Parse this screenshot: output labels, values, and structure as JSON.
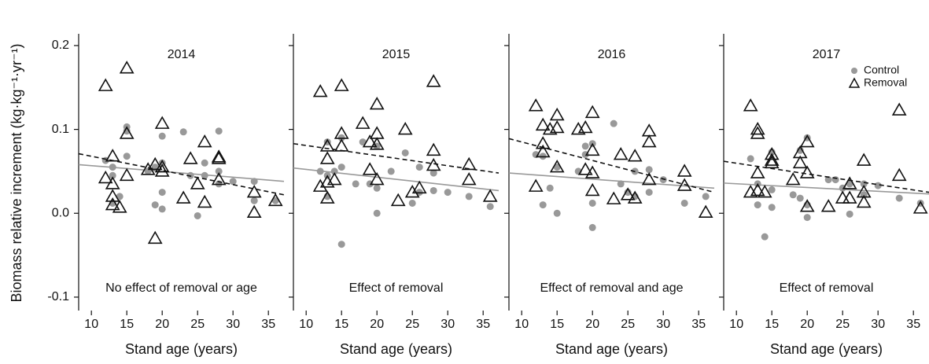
{
  "chart_data": [
    {
      "type": "scatter",
      "title": "2014",
      "annotation": "No effect of removal or age",
      "x_label": "Stand age (years)",
      "y_label": "Biomass relative increment (kg·kg⁻¹·yr⁻¹)",
      "xlim": [
        8.2,
        37.2
      ],
      "xticks": [
        10,
        15,
        20,
        25,
        30,
        35
      ],
      "ylim": [
        -0.116,
        0.214
      ],
      "yticks": [
        0.2,
        0.1,
        {
          "value": 0,
          "label": "0.0"
        },
        -0.1
      ],
      "series": [
        {
          "color": "#999999",
          "marker": "circle",
          "trend_style": "solid",
          "trend": [
            0.058,
            0.038
          ],
          "x": [
            12,
            13,
            13,
            13,
            14,
            15,
            15,
            15,
            18,
            19,
            19,
            20,
            20,
            20,
            20,
            23,
            24,
            25,
            26,
            26,
            28,
            28,
            28,
            30,
            33,
            33,
            36
          ],
          "values": [
            0.063,
            0.055,
            0.045,
            0.012,
            0.02,
            0.103,
            0.068,
            0.098,
            0.05,
            0.01,
            0.055,
            0.092,
            0.025,
            0.005,
            0.06,
            0.097,
            0.045,
            -0.003,
            0.06,
            0.045,
            0.098,
            0.05,
            0.035,
            0.038,
            0.038,
            0.015,
            0.015
          ]
        },
        {
          "color": "#111111",
          "marker": "triangle",
          "trend_style": "dashed",
          "trend": [
            0.071,
            0.022
          ],
          "x": [
            12,
            12,
            13,
            13,
            13,
            13,
            14,
            15,
            15,
            15,
            18,
            19,
            19,
            20,
            20,
            20,
            23,
            24,
            25,
            26,
            26,
            28,
            28,
            28,
            33,
            33,
            36
          ],
          "values": [
            0.152,
            0.042,
            0.068,
            0.035,
            0.02,
            0.01,
            0.007,
            0.173,
            0.095,
            0.045,
            0.052,
            0.058,
            -0.03,
            0.107,
            0.055,
            0.05,
            0.018,
            0.065,
            0.035,
            0.085,
            0.013,
            0.067,
            0.065,
            0.04,
            0.025,
            0.001,
            0.015
          ]
        }
      ]
    },
    {
      "type": "scatter",
      "title": "2015",
      "annotation": "Effect of removal",
      "x_label": "Stand age (years)",
      "xlim": [
        8.2,
        37.2
      ],
      "xticks": [
        10,
        15,
        20,
        25,
        30,
        35
      ],
      "ylim": [
        -0.116,
        0.214
      ],
      "series": [
        {
          "color": "#999999",
          "marker": "circle",
          "trend_style": "solid",
          "trend": [
            0.054,
            0.027
          ],
          "x": [
            12,
            13,
            13,
            13,
            14,
            15,
            15,
            15,
            17,
            18,
            19,
            20,
            20,
            20,
            22,
            24,
            25,
            26,
            26,
            28,
            28,
            30,
            33,
            36
          ],
          "values": [
            0.05,
            0.085,
            0.045,
            0.02,
            0.05,
            0.09,
            0.055,
            -0.037,
            0.035,
            0.085,
            0.035,
            0.03,
            0.0,
            0.08,
            0.05,
            0.072,
            0.012,
            0.055,
            0.025,
            0.048,
            0.027,
            0.025,
            0.02,
            0.008
          ]
        },
        {
          "color": "#111111",
          "marker": "triangle",
          "trend_style": "dashed",
          "trend": [
            0.083,
            0.048
          ],
          "x": [
            12,
            12,
            13,
            13,
            13,
            13,
            14,
            15,
            15,
            15,
            18,
            19,
            19,
            20,
            20,
            20,
            20,
            23,
            24,
            25,
            26,
            28,
            28,
            28,
            33,
            33,
            36
          ],
          "values": [
            0.145,
            0.032,
            0.08,
            0.065,
            0.037,
            0.018,
            0.04,
            0.152,
            0.095,
            0.08,
            0.107,
            0.085,
            0.052,
            0.13,
            0.095,
            0.082,
            0.04,
            0.015,
            0.1,
            0.025,
            0.03,
            0.157,
            0.075,
            0.057,
            0.058,
            0.04,
            0.02
          ]
        }
      ]
    },
    {
      "type": "scatter",
      "title": "2016",
      "annotation": "Effect of removal and age",
      "x_label": "Stand age (years)",
      "xlim": [
        8.2,
        37.2
      ],
      "xticks": [
        10,
        15,
        20,
        25,
        30,
        35
      ],
      "ylim": [
        -0.116,
        0.214
      ],
      "series": [
        {
          "color": "#999999",
          "marker": "circle",
          "trend_style": "solid",
          "trend": [
            0.048,
            0.03
          ],
          "x": [
            12,
            13,
            13,
            14,
            15,
            15,
            18,
            19,
            19,
            20,
            20,
            20,
            23,
            24,
            25,
            26,
            26,
            28,
            28,
            30,
            33,
            36
          ],
          "values": [
            0.07,
            0.01,
            0.068,
            0.03,
            0.0,
            0.055,
            0.05,
            0.08,
            0.07,
            0.083,
            0.012,
            -0.017,
            0.107,
            0.035,
            0.025,
            0.05,
            0.02,
            0.052,
            0.025,
            0.04,
            0.012,
            0.02
          ]
        },
        {
          "color": "#111111",
          "marker": "triangle",
          "trend_style": "dashed",
          "trend": [
            0.089,
            0.025
          ],
          "x": [
            12,
            12,
            13,
            13,
            13,
            14,
            15,
            15,
            15,
            18,
            19,
            19,
            20,
            20,
            20,
            20,
            23,
            24,
            25,
            26,
            26,
            28,
            28,
            28,
            33,
            33,
            36
          ],
          "values": [
            0.128,
            0.032,
            0.105,
            0.083,
            0.073,
            0.1,
            0.117,
            0.102,
            0.055,
            0.1,
            0.102,
            0.052,
            0.12,
            0.075,
            0.048,
            0.027,
            0.017,
            0.07,
            0.022,
            0.068,
            0.018,
            0.098,
            0.085,
            0.04,
            0.05,
            0.033,
            0.001
          ]
        }
      ]
    },
    {
      "type": "scatter",
      "title": "2017",
      "annotation": "Effect of removal",
      "x_label": "Stand age (years)",
      "xlim": [
        8.2,
        37.2
      ],
      "xticks": [
        10,
        15,
        20,
        25,
        30,
        35
      ],
      "ylim": [
        -0.116,
        0.214
      ],
      "legend": "top-right",
      "series": [
        {
          "name": "Control",
          "color": "#999999",
          "marker": "circle",
          "trend_style": "solid",
          "trend": [
            0.036,
            0.023
          ],
          "x": [
            12,
            13,
            13,
            14,
            15,
            15,
            15,
            18,
            19,
            19,
            20,
            20,
            20,
            23,
            24,
            25,
            26,
            26,
            28,
            28,
            30,
            33,
            36
          ],
          "values": [
            0.065,
            0.035,
            0.01,
            -0.028,
            0.073,
            0.028,
            0.007,
            0.022,
            0.075,
            0.018,
            0.09,
            -0.005,
            0.01,
            0.04,
            0.04,
            0.03,
            -0.001,
            0.035,
            0.022,
            0.035,
            0.033,
            0.018,
            0.012
          ]
        },
        {
          "name": "Removal",
          "color": "#111111",
          "marker": "triangle",
          "trend_style": "dashed",
          "trend": [
            0.062,
            0.025
          ],
          "x": [
            12,
            12,
            13,
            13,
            13,
            13,
            14,
            15,
            15,
            15,
            18,
            19,
            19,
            20,
            20,
            20,
            23,
            25,
            26,
            26,
            28,
            28,
            28,
            33,
            33,
            36
          ],
          "values": [
            0.128,
            0.025,
            0.1,
            0.095,
            0.048,
            0.027,
            0.025,
            0.07,
            0.063,
            0.06,
            0.04,
            0.072,
            0.06,
            0.085,
            0.048,
            0.008,
            0.008,
            0.018,
            0.035,
            0.018,
            0.063,
            0.025,
            0.013,
            0.123,
            0.045,
            0.006
          ]
        }
      ]
    }
  ]
}
